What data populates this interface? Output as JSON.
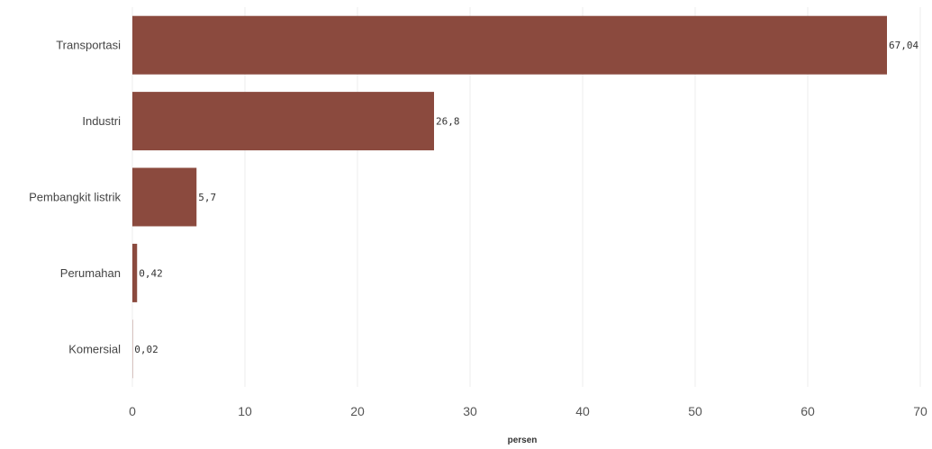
{
  "chart_data": {
    "type": "bar",
    "orientation": "horizontal",
    "categories": [
      "Transportasi",
      "Industri",
      "Pembangkit listrik",
      "Perumahan",
      "Komersial"
    ],
    "values": [
      67.04,
      26.8,
      5.7,
      0.42,
      0.02
    ],
    "data_labels": [
      "67,04",
      "26,8",
      "5,7",
      "0,42",
      "0,02"
    ],
    "xlabel": "persen",
    "ylabel": "",
    "xlim": [
      0,
      70
    ],
    "xticks": [
      0,
      10,
      20,
      30,
      40,
      50,
      60,
      70
    ],
    "xtick_labels": [
      "0",
      "10",
      "20",
      "30",
      "40",
      "50",
      "60",
      "70"
    ],
    "grid": "vertical",
    "bar_color": "#8b4a3e"
  }
}
